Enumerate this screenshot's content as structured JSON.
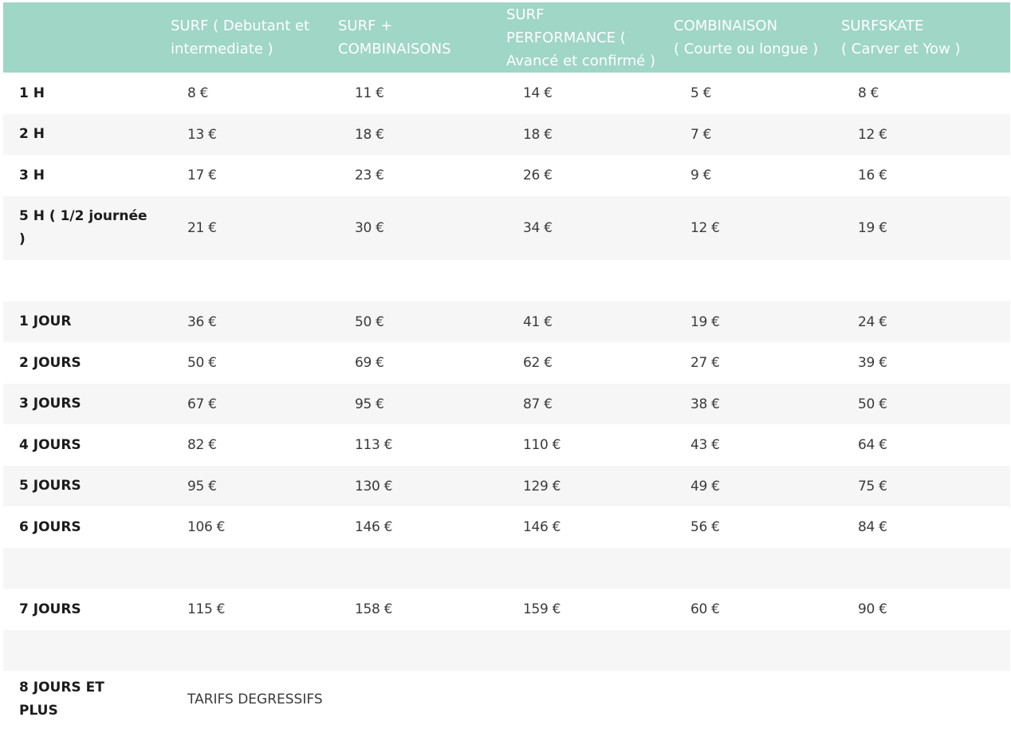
{
  "header": {
    "col1": "SURF ( Debutant et\nintermediate )",
    "col2": "SURF +\nCOMBINAISONS",
    "col3": "SURF\nPERFORMANCE (\nAvancé et confirmé )",
    "col4": "COMBINAISON\n( Courte ou longue )",
    "col5": "SURFSKATE\n( Carver et Yow )"
  },
  "rows": [
    {
      "label": "1 H",
      "values": [
        "8 €",
        "11 €",
        "14 €",
        "5 €",
        "8 €"
      ]
    },
    {
      "label": "2 H",
      "values": [
        "13 €",
        "18 €",
        "18 €",
        "7 €",
        "12 €"
      ]
    },
    {
      "label": "3 H",
      "values": [
        "17 €",
        "23 €",
        "26 €",
        "9 €",
        "16 €"
      ]
    },
    {
      "label": "5 H ( 1/2 journée\n)",
      "values": [
        "21 €",
        "30 €",
        "34 €",
        "12 €",
        "19 €"
      ]
    },
    {
      "label": "1  JOUR",
      "values": [
        "36 €",
        "50 €",
        "41 €",
        "19 €",
        "24 €"
      ]
    },
    {
      "label": "2  JOURS",
      "values": [
        "50 €",
        "69 €",
        "62 €",
        "27 €",
        "39 €"
      ]
    },
    {
      "label": "3  JOURS",
      "values": [
        "67 €",
        "95 €",
        "87 €",
        "38 €",
        "50 €"
      ]
    },
    {
      "label": "4  JOURS",
      "values": [
        "82 €",
        "113 €",
        "110 €",
        "43 €",
        "64 €"
      ]
    },
    {
      "label": "5  JOURS",
      "values": [
        "95 €",
        "130 €",
        "129 €",
        "49 €",
        "75 €"
      ]
    },
    {
      "label": "6  JOURS",
      "values": [
        "106 €",
        "146 €",
        "146 €",
        "56 €",
        "84 €"
      ]
    },
    {
      "label": "7  JOURS",
      "values": [
        "115 €",
        "158 €",
        "159 €",
        "60 €",
        "90 €"
      ]
    },
    {
      "label": "8 JOURS ET\nPLUS",
      "note": "TARIFS DEGRESSIFS"
    }
  ],
  "colors": {
    "header_bg": "#9fd6c6",
    "header_text": "#ffffff",
    "row_shade": "#f6f6f6"
  }
}
